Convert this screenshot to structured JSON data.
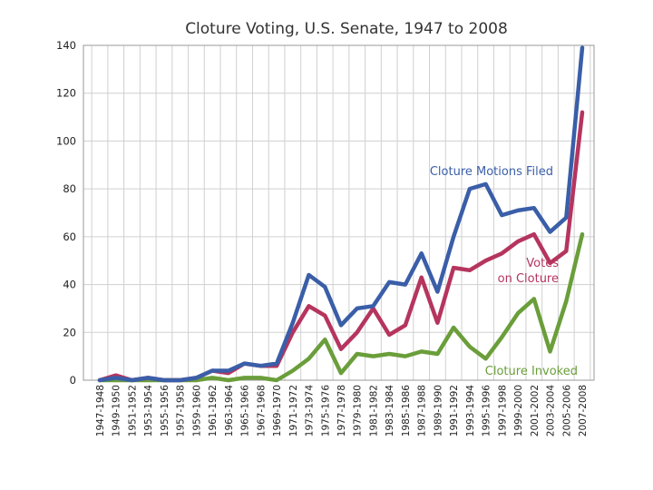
{
  "chart_data": {
    "type": "line",
    "title": "Cloture Voting, U.S. Senate, 1947 to 2008",
    "xlabel": "",
    "ylabel": "",
    "ylim": [
      0,
      140
    ],
    "yticks": [
      0,
      20,
      40,
      60,
      80,
      100,
      120,
      140
    ],
    "grid": true,
    "categories": [
      "1947-1948",
      "1949-1950",
      "1951-1952",
      "1953-1954",
      "1955-1956",
      "1957-1958",
      "1959-1960",
      "1961-1962",
      "1963-1964",
      "1965-1966",
      "1967-1968",
      "1969-1970",
      "1971-1972",
      "1973-1974",
      "1975-1976",
      "1977-1978",
      "1979-1980",
      "1981-1982",
      "1983-1984",
      "1985-1986",
      "1987-1988",
      "1989-1990",
      "1991-1992",
      "1993-1994",
      "1995-1996",
      "1997-1998",
      "1999-2000",
      "2001-2002",
      "2003-2004",
      "2005-2006",
      "2007-2008"
    ],
    "series": [
      {
        "name": "Cloture Motions Filed",
        "label_lines": [
          "Cloture Motions Filed"
        ],
        "color": "#3a5ea8",
        "values": [
          0,
          1,
          0,
          1,
          0,
          0,
          1,
          4,
          4,
          7,
          6,
          7,
          24,
          44,
          39,
          23,
          30,
          31,
          41,
          40,
          53,
          37,
          60,
          80,
          82,
          69,
          71,
          72,
          62,
          68,
          139
        ]
      },
      {
        "name": "Votes on Cloture",
        "label_lines": [
          "Votes",
          "on Cloture"
        ],
        "color": "#b5355f",
        "values": [
          0,
          2,
          0,
          1,
          0,
          0,
          1,
          4,
          3,
          7,
          6,
          6,
          20,
          31,
          27,
          13,
          20,
          30,
          19,
          23,
          43,
          24,
          47,
          46,
          50,
          53,
          58,
          61,
          49,
          54,
          112
        ]
      },
      {
        "name": "Cloture Invoked",
        "label_lines": [
          "Cloture Invoked"
        ],
        "color": "#6a9e3a",
        "values": [
          0,
          0,
          0,
          0,
          0,
          0,
          0,
          1,
          0,
          1,
          1,
          0,
          4,
          9,
          17,
          3,
          11,
          10,
          11,
          10,
          12,
          11,
          22,
          14,
          9,
          18,
          28,
          34,
          12,
          33,
          61
        ]
      }
    ]
  }
}
